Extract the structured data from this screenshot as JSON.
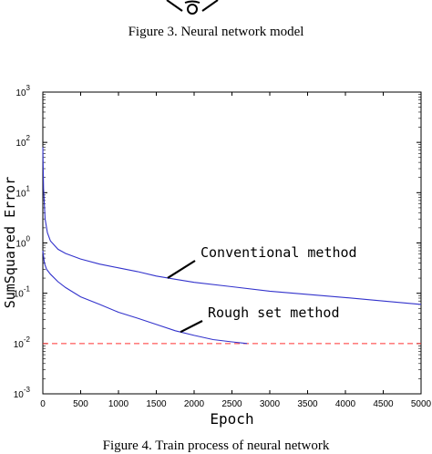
{
  "figure3_caption": "Figure 3.     Neural network model",
  "figure4_caption": "Figure 4.     Train process of neural network",
  "chart_data": {
    "type": "line",
    "title": "",
    "xlabel": "Epoch",
    "ylabel": "SumSquared Error",
    "xlim": [
      0,
      5000
    ],
    "ylim": [
      0.001,
      1000
    ],
    "yscale": "log",
    "x_ticks": [
      "0",
      "500",
      "1000",
      "1500",
      "2000",
      "2500",
      "3000",
      "3500",
      "4000",
      "4500",
      "5000"
    ],
    "y_ticks": [
      {
        "base": "10",
        "exp": "3"
      },
      {
        "base": "10",
        "exp": "2"
      },
      {
        "base": "10",
        "exp": "1"
      },
      {
        "base": "10",
        "exp": "0"
      },
      {
        "base": "10",
        "exp": "-1"
      },
      {
        "base": "10",
        "exp": "-2"
      },
      {
        "base": "10",
        "exp": "-3"
      }
    ],
    "grid": false,
    "series": [
      {
        "label": "Conventional method",
        "color": "#3333cc",
        "x": [
          0,
          10,
          30,
          60,
          100,
          200,
          300,
          500,
          750,
          1000,
          1250,
          1500,
          1750,
          2000,
          2500,
          3000,
          3500,
          4000,
          4500,
          5000
        ],
        "y": [
          80,
          12,
          3,
          1.6,
          1.1,
          0.75,
          0.62,
          0.48,
          0.38,
          0.32,
          0.27,
          0.22,
          0.19,
          0.165,
          0.135,
          0.11,
          0.095,
          0.082,
          0.07,
          0.06
        ]
      },
      {
        "label": "Rough set method",
        "color": "#3333cc",
        "x": [
          0,
          20,
          50,
          100,
          200,
          300,
          500,
          750,
          1000,
          1250,
          1500,
          1750,
          2000,
          2250,
          2500,
          2700
        ],
        "y": [
          0.7,
          0.4,
          0.3,
          0.24,
          0.17,
          0.13,
          0.085,
          0.06,
          0.042,
          0.032,
          0.024,
          0.018,
          0.0145,
          0.012,
          0.0108,
          0.01
        ]
      }
    ],
    "goal_line": {
      "y": 0.01,
      "color": "#ff3333",
      "style": "dashed"
    },
    "annotations": [
      {
        "text": "Conventional method",
        "points_to_x": 1650,
        "points_to_series": 0
      },
      {
        "text": "Rough set method",
        "points_to_x": 1820,
        "points_to_series": 1
      }
    ]
  }
}
